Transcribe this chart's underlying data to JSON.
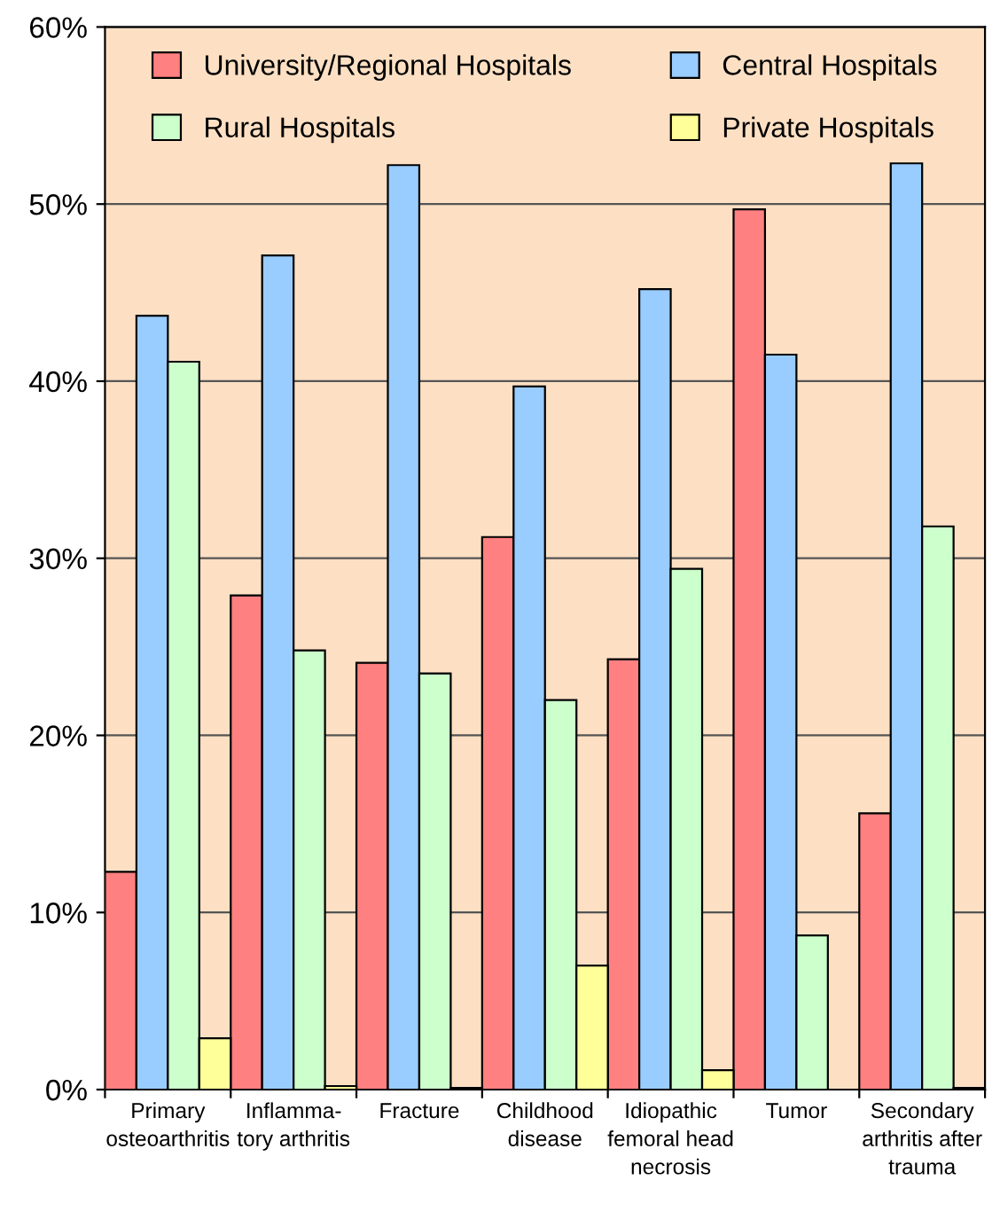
{
  "chart_data": {
    "type": "bar",
    "categories": [
      "Primary\nosteoarthritis",
      "Inflamma-\ntory arthritis",
      "Fracture",
      "Childhood\ndisease",
      "Idiopathic\nfemoral head\nnecrosis",
      "Tumor",
      "Secondary\narthritis after\ntrauma"
    ],
    "series": [
      {
        "name": "University/Regional Hospitals",
        "color": "#ff8080",
        "values": [
          12.3,
          27.9,
          24.1,
          31.2,
          24.3,
          49.7,
          15.6
        ]
      },
      {
        "name": "Central Hospitals",
        "color": "#99ccff",
        "values": [
          43.7,
          47.1,
          52.2,
          39.7,
          45.2,
          41.5,
          52.3
        ]
      },
      {
        "name": "Rural Hospitals",
        "color": "#ccffcc",
        "values": [
          41.1,
          24.8,
          23.5,
          22.0,
          29.4,
          8.7,
          31.8
        ]
      },
      {
        "name": "Private Hospitals",
        "color": "#ffff99",
        "values": [
          2.9,
          0.2,
          0.1,
          7.0,
          1.1,
          null,
          0.1
        ]
      }
    ],
    "ylim": [
      0,
      60
    ],
    "yticks": [
      {
        "value": 0,
        "label": "0%"
      },
      {
        "value": 10,
        "label": "10%"
      },
      {
        "value": 20,
        "label": "20%"
      },
      {
        "value": 30,
        "label": "30%"
      },
      {
        "value": 40,
        "label": "40%"
      },
      {
        "value": 50,
        "label": "50%"
      },
      {
        "value": 60,
        "label": "60%"
      }
    ],
    "grid": "y",
    "legend": "top"
  }
}
